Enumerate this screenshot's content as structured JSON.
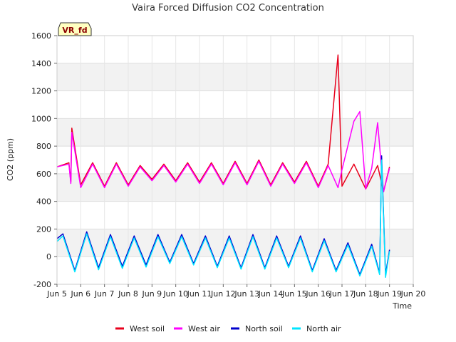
{
  "chart_data": {
    "type": "line",
    "title": "Vaira Forced Diffusion CO2 Concentration",
    "xlabel": "Time",
    "ylabel": "CO2 (ppm)",
    "badge": "VR_fd",
    "xlim": [
      "Jun 5",
      "Jun 20"
    ],
    "ylim": [
      -200,
      1600
    ],
    "x_ticks": [
      "Jun 5",
      "Jun 6",
      "Jun 7",
      "Jun 8",
      "Jun 9",
      "Jun 10",
      "Jun 11",
      "Jun 12",
      "Jun 13",
      "Jun 14",
      "Jun 15",
      "Jun 16",
      "Jun 17",
      "Jun 18",
      "Jun 19",
      "Jun 20"
    ],
    "y_ticks": [
      -200,
      0,
      200,
      400,
      600,
      800,
      1000,
      1200,
      1400,
      1600
    ],
    "grid": true,
    "legend_position": "bottom",
    "series": [
      {
        "name": "West soil",
        "color": "#e8001c",
        "x": [
          "2023-06-05T00:00",
          "2023-06-05T12:00",
          "2023-06-05T14:00",
          "2023-06-05T15:00",
          "2023-06-06T00:00",
          "2023-06-06T12:00",
          "2023-06-07T00:00",
          "2023-06-07T12:00",
          "2023-06-08T00:00",
          "2023-06-08T12:00",
          "2023-06-09T00:00",
          "2023-06-09T12:00",
          "2023-06-10T00:00",
          "2023-06-10T12:00",
          "2023-06-11T00:00",
          "2023-06-11T12:00",
          "2023-06-12T00:00",
          "2023-06-12T12:00",
          "2023-06-13T00:00",
          "2023-06-13T12:00",
          "2023-06-14T00:00",
          "2023-06-14T12:00",
          "2023-06-15T00:00",
          "2023-06-15T12:00",
          "2023-06-16T00:00",
          "2023-06-16T10:00",
          "2023-06-16T20:00",
          "2023-06-17T00:00",
          "2023-06-17T12:00",
          "2023-06-18T00:00",
          "2023-06-18T12:00",
          "2023-06-18T18:00",
          "2023-06-19T00:00"
        ],
        "y": [
          650,
          680,
          540,
          930,
          520,
          680,
          510,
          680,
          520,
          660,
          560,
          670,
          550,
          680,
          540,
          680,
          530,
          690,
          530,
          700,
          520,
          680,
          540,
          690,
          510,
          670,
          1460,
          510,
          670,
          490,
          660,
          470,
          650
        ]
      },
      {
        "name": "West air",
        "color": "#ff00ff",
        "x": [
          "2023-06-05T00:00",
          "2023-06-05T12:00",
          "2023-06-05T14:00",
          "2023-06-05T15:00",
          "2023-06-06T00:00",
          "2023-06-06T12:00",
          "2023-06-07T00:00",
          "2023-06-07T12:00",
          "2023-06-08T00:00",
          "2023-06-08T12:00",
          "2023-06-09T00:00",
          "2023-06-09T12:00",
          "2023-06-10T00:00",
          "2023-06-10T12:00",
          "2023-06-11T00:00",
          "2023-06-11T12:00",
          "2023-06-12T00:00",
          "2023-06-12T12:00",
          "2023-06-13T00:00",
          "2023-06-13T12:00",
          "2023-06-14T00:00",
          "2023-06-14T12:00",
          "2023-06-15T00:00",
          "2023-06-15T12:00",
          "2023-06-16T00:00",
          "2023-06-16T10:00",
          "2023-06-16T20:00",
          "2023-06-17T00:00",
          "2023-06-17T12:00",
          "2023-06-17T18:00",
          "2023-06-18T00:00",
          "2023-06-18T06:00",
          "2023-06-18T12:00",
          "2023-06-18T18:00",
          "2023-06-19T00:00"
        ],
        "y": [
          650,
          670,
          530,
          900,
          500,
          670,
          500,
          670,
          510,
          650,
          550,
          660,
          540,
          670,
          530,
          670,
          520,
          680,
          520,
          690,
          510,
          670,
          530,
          680,
          500,
          660,
          500,
          630,
          980,
          1050,
          490,
          640,
          970,
          470,
          640
        ]
      },
      {
        "name": "North soil",
        "color": "#0000cc",
        "x": [
          "2023-06-05T00:00",
          "2023-06-05T06:00",
          "2023-06-05T18:00",
          "2023-06-06T06:00",
          "2023-06-06T18:00",
          "2023-06-07T06:00",
          "2023-06-07T18:00",
          "2023-06-08T06:00",
          "2023-06-08T18:00",
          "2023-06-09T06:00",
          "2023-06-09T18:00",
          "2023-06-10T06:00",
          "2023-06-10T18:00",
          "2023-06-11T06:00",
          "2023-06-11T18:00",
          "2023-06-12T06:00",
          "2023-06-12T18:00",
          "2023-06-13T06:00",
          "2023-06-13T18:00",
          "2023-06-14T06:00",
          "2023-06-14T18:00",
          "2023-06-15T06:00",
          "2023-06-15T18:00",
          "2023-06-16T06:00",
          "2023-06-16T18:00",
          "2023-06-17T06:00",
          "2023-06-17T18:00",
          "2023-06-18T06:00",
          "2023-06-18T14:00",
          "2023-06-18T16:00",
          "2023-06-18T20:00",
          "2023-06-19T00:00"
        ],
        "y": [
          130,
          165,
          -100,
          180,
          -80,
          160,
          -70,
          150,
          -60,
          160,
          -40,
          160,
          -50,
          150,
          -70,
          150,
          -80,
          160,
          -80,
          150,
          -70,
          150,
          -100,
          130,
          -100,
          100,
          -130,
          90,
          -120,
          730,
          -130,
          50
        ]
      },
      {
        "name": "North air",
        "color": "#00e5ff",
        "x": [
          "2023-06-05T00:00",
          "2023-06-05T06:00",
          "2023-06-05T18:00",
          "2023-06-06T06:00",
          "2023-06-06T18:00",
          "2023-06-07T06:00",
          "2023-06-07T18:00",
          "2023-06-08T06:00",
          "2023-06-08T18:00",
          "2023-06-09T06:00",
          "2023-06-09T18:00",
          "2023-06-10T06:00",
          "2023-06-10T18:00",
          "2023-06-11T06:00",
          "2023-06-11T18:00",
          "2023-06-12T06:00",
          "2023-06-12T18:00",
          "2023-06-13T06:00",
          "2023-06-13T18:00",
          "2023-06-14T06:00",
          "2023-06-14T18:00",
          "2023-06-15T06:00",
          "2023-06-15T18:00",
          "2023-06-16T06:00",
          "2023-06-16T18:00",
          "2023-06-17T06:00",
          "2023-06-17T18:00",
          "2023-06-18T06:00",
          "2023-06-18T14:00",
          "2023-06-18T16:00",
          "2023-06-18T20:00",
          "2023-06-19T00:00"
        ],
        "y": [
          110,
          150,
          -110,
          165,
          -95,
          145,
          -85,
          135,
          -75,
          145,
          -50,
          145,
          -60,
          135,
          -80,
          135,
          -90,
          145,
          -90,
          135,
          -80,
          135,
          -110,
          115,
          -110,
          85,
          -140,
          75,
          -130,
          700,
          -150,
          40
        ]
      }
    ]
  }
}
